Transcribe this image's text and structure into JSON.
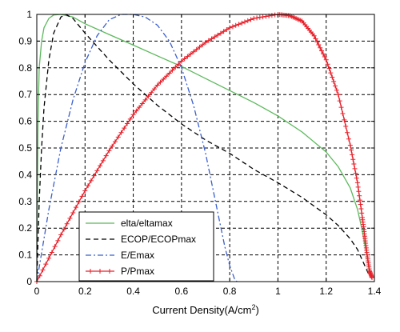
{
  "chart_data": {
    "type": "line",
    "title": "",
    "xlabel": "Current Density(A/cm",
    "xlabel_sup": "2",
    "xlabel_end": ")",
    "ylabel": "",
    "xlim": [
      0,
      1.4
    ],
    "ylim": [
      0,
      1
    ],
    "xticks": [
      0,
      0.2,
      0.4,
      0.6,
      0.8,
      1,
      1.2,
      1.4
    ],
    "xtick_labels": [
      "0",
      "0.2",
      "0.4",
      "0.6",
      "0.8",
      "1",
      "1.2",
      "1.4"
    ],
    "yticks": [
      0,
      0.1,
      0.2,
      0.3,
      0.4,
      0.5,
      0.6,
      0.7,
      0.8,
      0.9,
      1
    ],
    "ytick_labels": [
      "0",
      "0.1",
      "0.2",
      "0.3",
      "0.4",
      "0.5",
      "0.6",
      "0.7",
      "0.8",
      "0.9",
      "1"
    ],
    "grid": true,
    "legend_position": "bottom-left",
    "series": [
      {
        "name": "elta/eltamax",
        "color": "#5cb85c",
        "style": "solid",
        "x": [
          0,
          0.005,
          0.01,
          0.02,
          0.03,
          0.05,
          0.07,
          0.1,
          0.15,
          0.2,
          0.3,
          0.4,
          0.5,
          0.6,
          0.7,
          0.8,
          0.9,
          1.0,
          1.1,
          1.2,
          1.25,
          1.3,
          1.33,
          1.35,
          1.37,
          1.38
        ],
        "y": [
          0,
          0.6,
          0.8,
          0.9,
          0.95,
          0.985,
          0.998,
          1.0,
          0.99,
          0.965,
          0.925,
          0.885,
          0.845,
          0.805,
          0.76,
          0.715,
          0.67,
          0.62,
          0.56,
          0.485,
          0.43,
          0.35,
          0.27,
          0.19,
          0.09,
          0.03
        ]
      },
      {
        "name": "ECOP/ECOPmax",
        "color": "#000000",
        "style": "dashed",
        "x": [
          0,
          0.01,
          0.02,
          0.03,
          0.05,
          0.07,
          0.1,
          0.12,
          0.15,
          0.2,
          0.3,
          0.4,
          0.5,
          0.6,
          0.7,
          0.8,
          0.9,
          1.0,
          1.1,
          1.2,
          1.25,
          1.3,
          1.33,
          1.35,
          1.37,
          1.38
        ],
        "y": [
          0,
          0.3,
          0.5,
          0.65,
          0.83,
          0.93,
          0.99,
          1.0,
          0.985,
          0.93,
          0.83,
          0.74,
          0.66,
          0.59,
          0.53,
          0.48,
          0.42,
          0.37,
          0.315,
          0.25,
          0.21,
          0.16,
          0.12,
          0.08,
          0.04,
          0.02
        ]
      },
      {
        "name": "E/Emax",
        "color": "#3a5fcd",
        "style": "dashdot",
        "x": [
          0,
          0.05,
          0.1,
          0.15,
          0.2,
          0.25,
          0.3,
          0.35,
          0.4,
          0.45,
          0.5,
          0.55,
          0.6,
          0.65,
          0.7,
          0.75,
          0.78,
          0.8,
          0.82,
          0.83
        ],
        "y": [
          0,
          0.27,
          0.5,
          0.68,
          0.82,
          0.92,
          0.98,
          1.0,
          1.0,
          0.99,
          0.96,
          0.9,
          0.8,
          0.66,
          0.48,
          0.26,
          0.13,
          0.06,
          0.01,
          0
        ]
      },
      {
        "name": "P/Pmax",
        "color": "#e8202a",
        "style": "solid-plus",
        "x": [
          0,
          0.1,
          0.2,
          0.3,
          0.4,
          0.5,
          0.6,
          0.7,
          0.8,
          0.9,
          1.0,
          1.05,
          1.1,
          1.15,
          1.2,
          1.25,
          1.3,
          1.33,
          1.35,
          1.36,
          1.37,
          1.38,
          1.39
        ],
        "y": [
          0,
          0.175,
          0.34,
          0.49,
          0.625,
          0.735,
          0.825,
          0.895,
          0.95,
          0.985,
          1.0,
          0.995,
          0.975,
          0.92,
          0.83,
          0.7,
          0.51,
          0.37,
          0.24,
          0.17,
          0.1,
          0.04,
          0.015
        ]
      }
    ]
  }
}
